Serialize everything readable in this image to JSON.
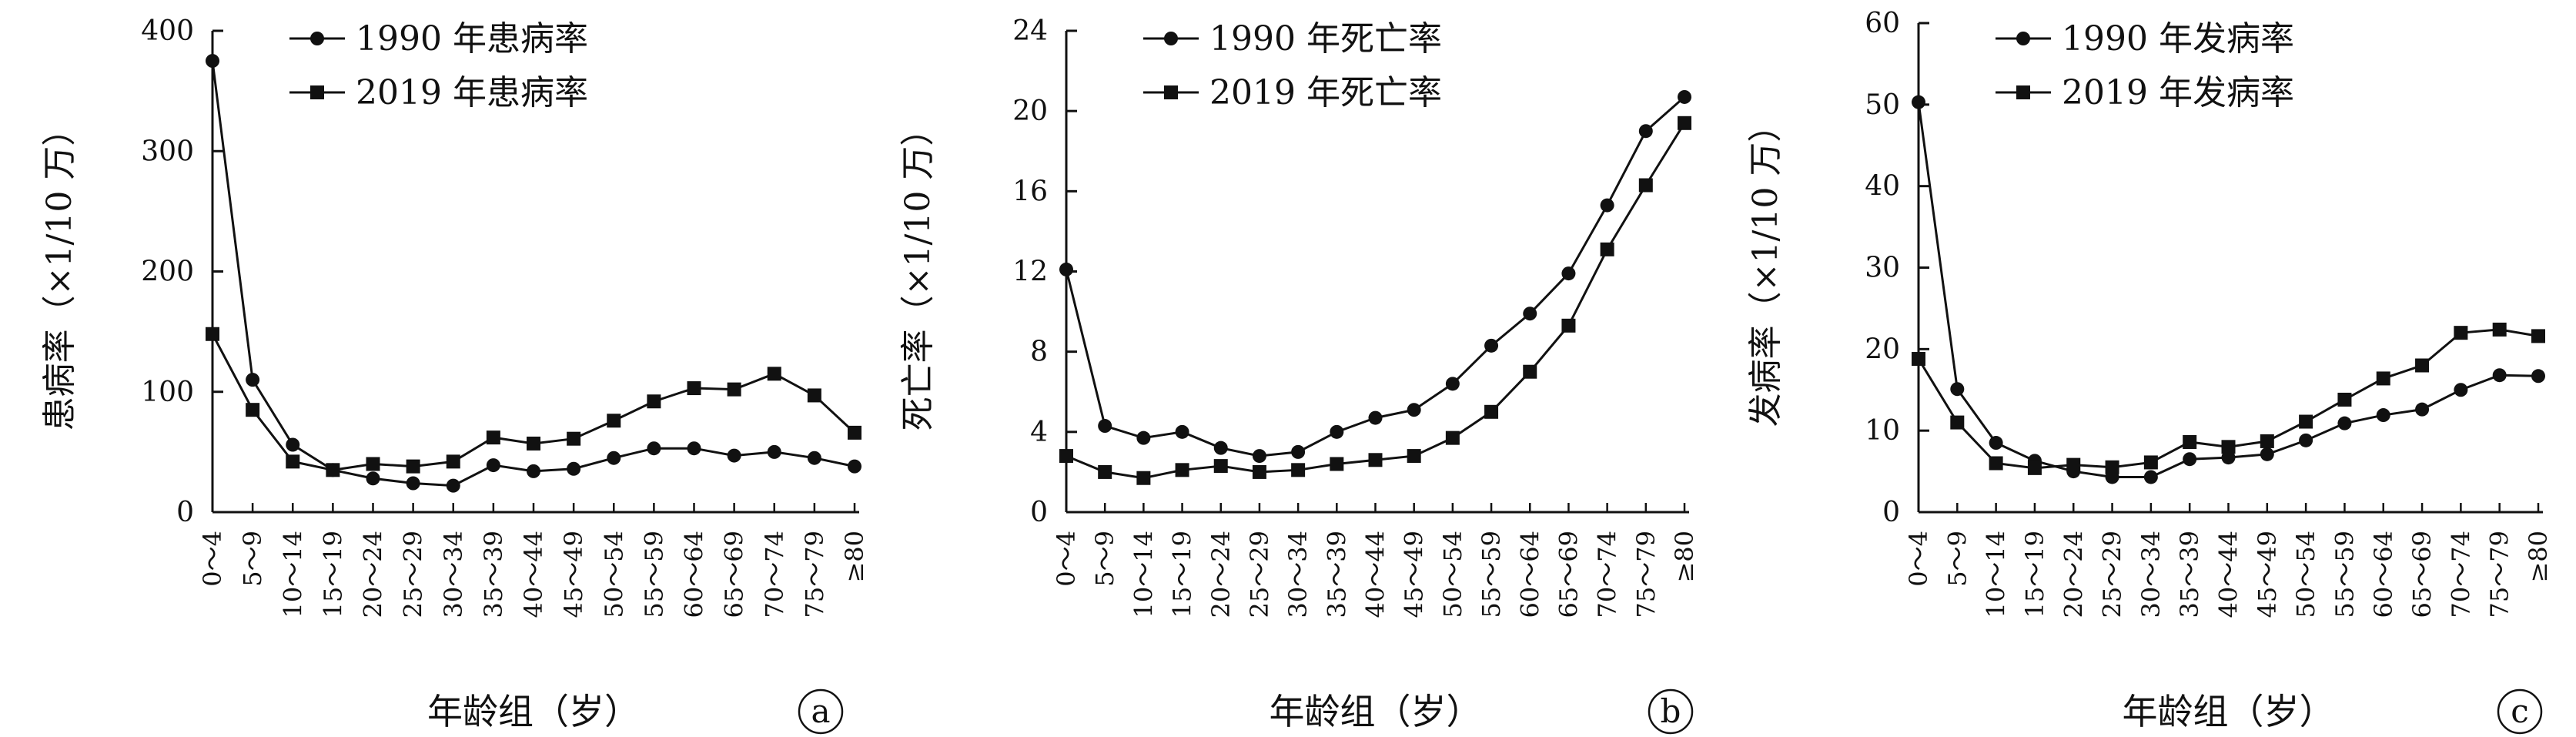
{
  "chart_data": [
    {
      "type": "line",
      "panel_label": "a",
      "xlabel": "年龄组（岁）",
      "ylabel": "患病率（×1/10 万）",
      "ylim": [
        0,
        400
      ],
      "yticks": [
        "0",
        "100",
        "200",
        "300",
        "400"
      ],
      "categories": [
        "0～4",
        "5～9",
        "10～14",
        "15～19",
        "20～24",
        "25～29",
        "30～34",
        "35～39",
        "40～44",
        "45～49",
        "50～54",
        "55～59",
        "60～64",
        "65～69",
        "70～74",
        "75～79",
        "≥80"
      ],
      "legend_position": "top-right",
      "series": [
        {
          "name": "1990 年患病率",
          "marker": "circle",
          "values": [
            375,
            110,
            56,
            35,
            28,
            24,
            22,
            39,
            34,
            36,
            45,
            53,
            53,
            47,
            50,
            45,
            38
          ]
        },
        {
          "name": "2019 年患病率",
          "marker": "square",
          "values": [
            148,
            85,
            42,
            35,
            40,
            38,
            42,
            62,
            57,
            61,
            76,
            92,
            103,
            102,
            115,
            97,
            66
          ]
        }
      ]
    },
    {
      "type": "line",
      "panel_label": "b",
      "xlabel": "年龄组（岁）",
      "ylabel": "死亡率（×1/10 万）",
      "ylim": [
        0,
        24
      ],
      "yticks": [
        "0",
        "4",
        "8",
        "12",
        "16",
        "20",
        "24"
      ],
      "categories": [
        "0～4",
        "5～9",
        "10～14",
        "15～19",
        "20～24",
        "25～29",
        "30～34",
        "35～39",
        "40～44",
        "45～49",
        "50～54",
        "55～59",
        "60～64",
        "65～69",
        "70～74",
        "75～79",
        "≥80"
      ],
      "legend_position": "top-right",
      "series": [
        {
          "name": "1990 年死亡率",
          "marker": "circle",
          "values": [
            12.1,
            4.3,
            3.7,
            4.0,
            3.2,
            2.8,
            3.0,
            4.0,
            4.7,
            5.1,
            6.4,
            8.3,
            9.9,
            11.9,
            15.3,
            19.0,
            20.7
          ]
        },
        {
          "name": "2019 年死亡率",
          "marker": "square",
          "values": [
            2.8,
            2.0,
            1.7,
            2.1,
            2.3,
            2.0,
            2.1,
            2.4,
            2.6,
            2.8,
            3.7,
            5.0,
            7.0,
            9.3,
            13.1,
            16.3,
            19.4
          ]
        }
      ]
    },
    {
      "type": "line",
      "panel_label": "c",
      "xlabel": "年龄组（岁）",
      "ylabel": "发病率（×1/10 万）",
      "ylim": [
        0,
        60
      ],
      "yticks": [
        "0",
        "10",
        "20",
        "30",
        "40",
        "50",
        "60"
      ],
      "categories": [
        "0～4",
        "5～9",
        "10～14",
        "15～19",
        "20～24",
        "25～29",
        "30～34",
        "35～39",
        "40～44",
        "45～49",
        "50～54",
        "55～59",
        "60～64",
        "65～69",
        "70～74",
        "75～79",
        "≥80"
      ],
      "legend_position": "top-right",
      "series": [
        {
          "name": "1990 年发病率",
          "marker": "circle",
          "values": [
            50.3,
            15.1,
            8.5,
            6.3,
            5.0,
            4.3,
            4.3,
            6.5,
            6.7,
            7.1,
            8.8,
            10.9,
            11.9,
            12.6,
            15.0,
            16.8,
            16.7
          ]
        },
        {
          "name": "2019 年发病率",
          "marker": "square",
          "values": [
            18.8,
            11.0,
            6.0,
            5.4,
            5.8,
            5.5,
            6.1,
            8.6,
            8.0,
            8.7,
            11.1,
            13.8,
            16.4,
            18.0,
            22.0,
            22.4,
            21.6
          ]
        }
      ]
    }
  ]
}
